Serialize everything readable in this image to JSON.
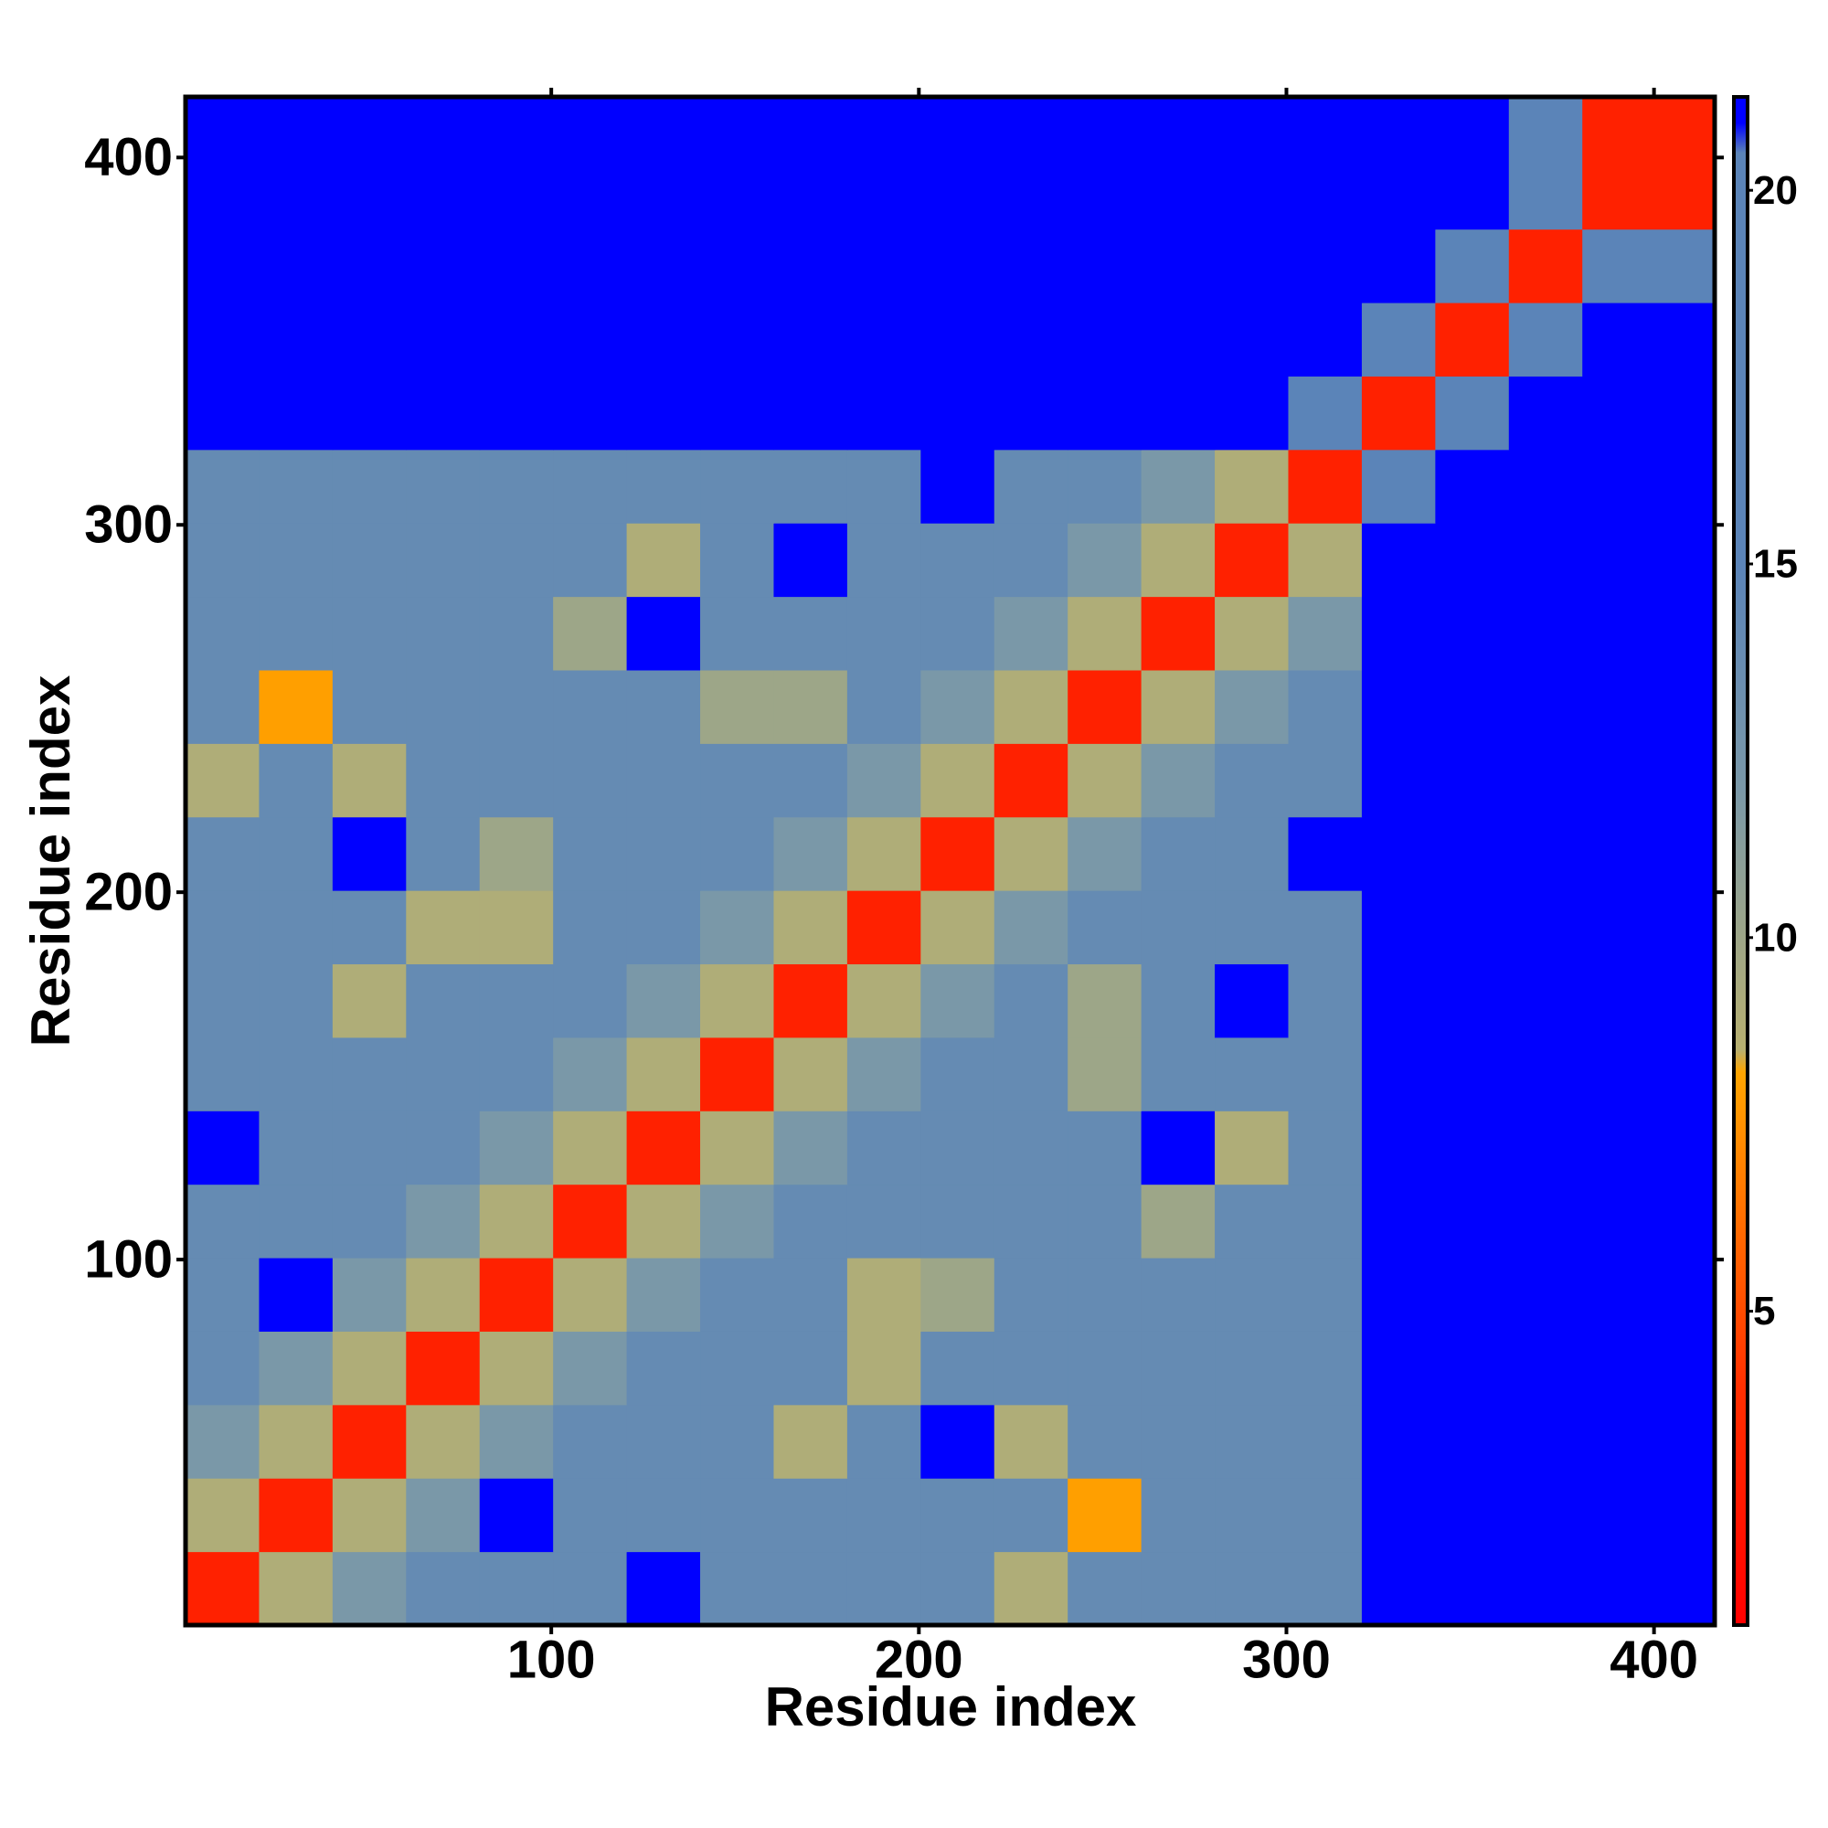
{
  "chart_data": {
    "type": "heatmap",
    "xlabel": "Residue index",
    "ylabel": "Residue index",
    "xlim": [
      0.5,
      416.5
    ],
    "ylim": [
      0.5,
      416.5
    ],
    "xticks": [
      100,
      200,
      300,
      400
    ],
    "yticks": [
      100,
      200,
      300,
      400
    ],
    "xbins": [
      0.5,
      20.5,
      40.5,
      60.5,
      80.5,
      100.5,
      120.5,
      140.5,
      160.5,
      180.5,
      200.5,
      220.5,
      240.5,
      260.5,
      280.5,
      300.5,
      320.5,
      340.5,
      360.5,
      380.5,
      416.5
    ],
    "ybins": [
      0.5,
      20.5,
      40.5,
      60.5,
      80.5,
      100.5,
      120.5,
      140.5,
      160.5,
      180.5,
      200.5,
      220.5,
      240.5,
      260.5,
      280.5,
      300.5,
      320.5,
      340.5,
      360.5,
      380.5,
      416.5
    ],
    "z": [
      [
        3,
        9,
        12,
        14,
        14,
        14,
        21,
        14,
        14,
        14,
        14,
        9,
        14,
        14,
        14,
        14,
        21,
        21,
        21,
        21
      ],
      [
        9,
        3,
        9,
        12,
        21,
        14,
        14,
        14,
        14,
        14,
        14,
        14,
        8,
        14,
        14,
        14,
        21,
        21,
        21,
        21
      ],
      [
        12,
        9,
        3,
        9,
        12,
        14,
        14,
        14,
        9,
        14,
        21,
        9,
        14,
        14,
        14,
        14,
        21,
        21,
        21,
        21
      ],
      [
        14,
        12,
        9,
        3,
        9,
        12,
        14,
        14,
        14,
        9,
        14,
        14,
        14,
        14,
        14,
        14,
        21,
        21,
        21,
        21
      ],
      [
        14,
        21,
        12,
        9,
        3,
        9,
        12,
        14,
        14,
        9,
        10,
        14,
        14,
        14,
        14,
        14,
        21,
        21,
        21,
        21
      ],
      [
        14,
        14,
        14,
        12,
        9,
        3,
        9,
        12,
        14,
        14,
        14,
        14,
        14,
        10,
        14,
        14,
        21,
        21,
        21,
        21
      ],
      [
        21,
        14,
        14,
        14,
        12,
        9,
        3,
        9,
        12,
        14,
        14,
        14,
        14,
        21,
        9,
        14,
        21,
        21,
        21,
        21
      ],
      [
        14,
        14,
        14,
        14,
        14,
        12,
        9,
        3,
        9,
        12,
        14,
        14,
        10,
        14,
        14,
        14,
        21,
        21,
        21,
        21
      ],
      [
        14,
        14,
        9,
        14,
        14,
        14,
        12,
        9,
        3,
        9,
        12,
        14,
        10,
        14,
        21,
        14,
        21,
        21,
        21,
        21
      ],
      [
        14,
        14,
        14,
        9,
        9,
        14,
        14,
        12,
        9,
        3,
        9,
        12,
        14,
        14,
        14,
        14,
        21,
        21,
        21,
        21
      ],
      [
        14,
        14,
        21,
        14,
        10,
        14,
        14,
        14,
        12,
        9,
        3,
        9,
        12,
        14,
        14,
        21,
        21,
        21,
        21,
        21
      ],
      [
        9,
        14,
        9,
        14,
        14,
        14,
        14,
        14,
        14,
        12,
        9,
        3,
        9,
        12,
        14,
        14,
        21,
        21,
        21,
        21
      ],
      [
        14,
        8,
        14,
        14,
        14,
        14,
        14,
        10,
        10,
        14,
        12,
        9,
        3,
        9,
        12,
        14,
        21,
        21,
        21,
        21
      ],
      [
        14,
        14,
        14,
        14,
        14,
        10,
        21,
        14,
        14,
        14,
        14,
        12,
        9,
        3,
        9,
        12,
        21,
        21,
        21,
        21
      ],
      [
        14,
        14,
        14,
        14,
        14,
        14,
        9,
        14,
        21,
        14,
        14,
        14,
        12,
        9,
        3,
        9,
        21,
        21,
        21,
        21
      ],
      [
        14,
        14,
        14,
        14,
        14,
        14,
        14,
        14,
        14,
        14,
        21,
        14,
        14,
        12,
        9,
        3,
        16,
        21,
        21,
        21
      ],
      [
        21,
        21,
        21,
        21,
        21,
        21,
        21,
        21,
        21,
        21,
        21,
        21,
        21,
        21,
        21,
        16,
        3,
        16,
        21,
        21
      ],
      [
        21,
        21,
        21,
        21,
        21,
        21,
        21,
        21,
        21,
        21,
        21,
        21,
        21,
        21,
        21,
        21,
        16,
        3,
        16,
        21
      ],
      [
        21,
        21,
        21,
        21,
        21,
        21,
        21,
        21,
        21,
        21,
        21,
        21,
        21,
        21,
        21,
        21,
        21,
        16,
        3,
        16
      ],
      [
        21,
        21,
        21,
        21,
        21,
        21,
        21,
        21,
        21,
        21,
        21,
        21,
        21,
        21,
        21,
        21,
        21,
        21,
        16,
        3
      ]
    ],
    "clim": [
      0.8,
      21.25
    ],
    "cticks": [
      5,
      10,
      15,
      20
    ],
    "colorscale": [
      [
        0.8,
        "#ff0000"
      ],
      [
        4,
        "#ff3000"
      ],
      [
        8.2,
        "#ffa500"
      ],
      [
        8.5,
        "#b8b070"
      ],
      [
        12,
        "#7a98a8"
      ],
      [
        15,
        "#5b84b8"
      ],
      [
        20.5,
        "#5b84b8"
      ],
      [
        20.9,
        "#0000ff"
      ],
      [
        21.25,
        "#0000ff"
      ]
    ]
  }
}
